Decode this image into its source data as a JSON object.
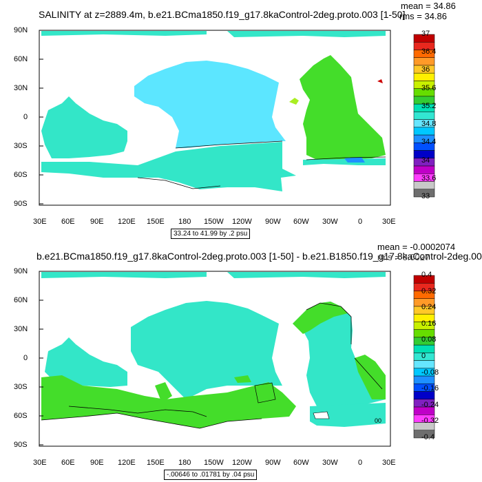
{
  "panels": [
    {
      "title": "SALINITY at z=2889.4m, b.e21.BCma1850.f19_g17.8kaControl-2deg.proto.003 [1-50]",
      "mean": "mean = 34.86",
      "rms": "rms = 34.86",
      "range_note": "33.24 to 41.99 by .2 psu",
      "colorbar": {
        "labels": [
          "37",
          "36.4",
          "36",
          "35.6",
          "35.2",
          "34.8",
          "34.4",
          "34",
          "33.6",
          "33"
        ],
        "colors": [
          "#c00000",
          "#e8281e",
          "#ff6a00",
          "#ff9a28",
          "#ffc828",
          "#fff000",
          "#c8f000",
          "#66dd00",
          "#33cc33",
          "#00e0b4",
          "#33e6d2",
          "#66e6ff",
          "#00c8ff",
          "#1e90ff",
          "#0050ff",
          "#0000c8",
          "#8020c0",
          "#c000c8",
          "#ff3cff",
          "#c8c8c8",
          "#6e6e6e"
        ]
      },
      "contour_label": ""
    },
    {
      "title": "b.e21.BCma1850.f19_g17.8kaControl-2deg.proto.003 [1-50] - b.e21.B1850.f19_g17.8kaControl-2deg.00",
      "mean": "mean = -0.0002074",
      "rms": "rms = 0.0027",
      "range_note": "-.00646 to .01781 by .04 psu",
      "colorbar": {
        "labels": [
          "0.4",
          "0.32",
          "0.24",
          "0.16",
          "0.08",
          "0",
          "-0.08",
          "-0.16",
          "-0.24",
          "-0.32",
          "-0.4"
        ],
        "colors": [
          "#c00000",
          "#e8281e",
          "#ff6a00",
          "#ff9a28",
          "#ffc828",
          "#fff000",
          "#c8f000",
          "#66dd00",
          "#33cc33",
          "#00e0b4",
          "#33e6d2",
          "#66e6ff",
          "#00c8ff",
          "#1e90ff",
          "#0050ff",
          "#0000c8",
          "#8020c0",
          "#c000c8",
          "#ff3cff",
          "#c8c8c8",
          "#6e6e6e"
        ]
      },
      "contour_label": "00"
    }
  ],
  "lat_ticks": [
    "90N",
    "60N",
    "30N",
    "0",
    "30S",
    "60S",
    "90S"
  ],
  "lon_ticks": [
    "30E",
    "60E",
    "90E",
    "120E",
    "150E",
    "180",
    "150W",
    "120W",
    "90W",
    "60W",
    "30W",
    "0",
    "30E"
  ],
  "colors": {
    "pacific": "#5ce6ff",
    "indian": "#33e6c8",
    "atlantic": "#44dd2a",
    "southern": "#33e6c8",
    "green": "#44dd2a",
    "red": "#cc0000"
  }
}
